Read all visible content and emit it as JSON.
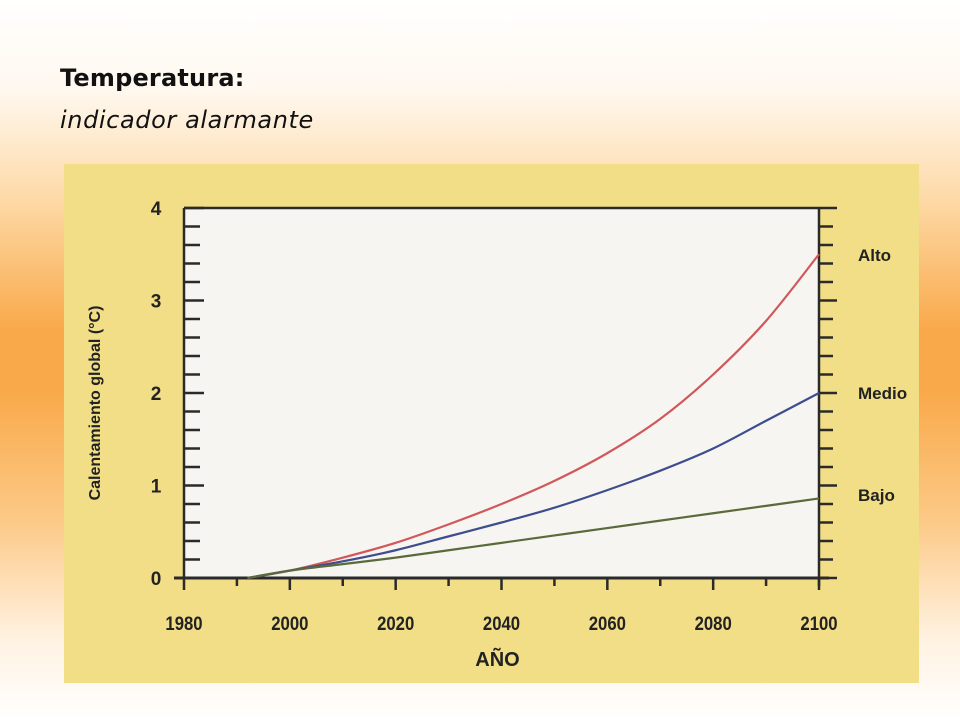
{
  "slide": {
    "title": "Temperatura:",
    "subtitle": "indicador alarmante"
  },
  "colors": {
    "panel_background": "#f1de86",
    "plot_background": "#f7f5f2",
    "axis": "#2a2a2a"
  },
  "chart_data": {
    "type": "line",
    "xlabel": "AÑO",
    "ylabel": "Calentamiento global (°C)",
    "xlim": [
      1980,
      2100
    ],
    "ylim": [
      0,
      4
    ],
    "xticks": [
      1980,
      2000,
      2020,
      2040,
      2060,
      2080,
      2100
    ],
    "yticks": [
      0,
      1,
      2,
      3,
      4
    ],
    "grid": false,
    "legend": "labels at right end of lines",
    "series": [
      {
        "name": "Alto",
        "color": "#d0585a",
        "x": [
          1992,
          2000,
          2010,
          2020,
          2030,
          2040,
          2050,
          2060,
          2070,
          2080,
          2090,
          2100
        ],
        "y": [
          0.0,
          0.08,
          0.22,
          0.38,
          0.58,
          0.8,
          1.05,
          1.35,
          1.72,
          2.2,
          2.78,
          3.5
        ]
      },
      {
        "name": "Medio",
        "color": "#3d4d8d",
        "x": [
          1992,
          2000,
          2010,
          2020,
          2030,
          2040,
          2050,
          2060,
          2070,
          2080,
          2090,
          2100
        ],
        "y": [
          0.0,
          0.08,
          0.18,
          0.3,
          0.45,
          0.6,
          0.76,
          0.95,
          1.16,
          1.4,
          1.7,
          2.0
        ]
      },
      {
        "name": "Bajo",
        "color": "#5a6a3a",
        "x": [
          1992,
          2000,
          2010,
          2020,
          2030,
          2040,
          2050,
          2060,
          2070,
          2080,
          2090,
          2100
        ],
        "y": [
          0.0,
          0.08,
          0.15,
          0.22,
          0.3,
          0.38,
          0.46,
          0.54,
          0.62,
          0.7,
          0.78,
          0.86
        ]
      }
    ]
  }
}
